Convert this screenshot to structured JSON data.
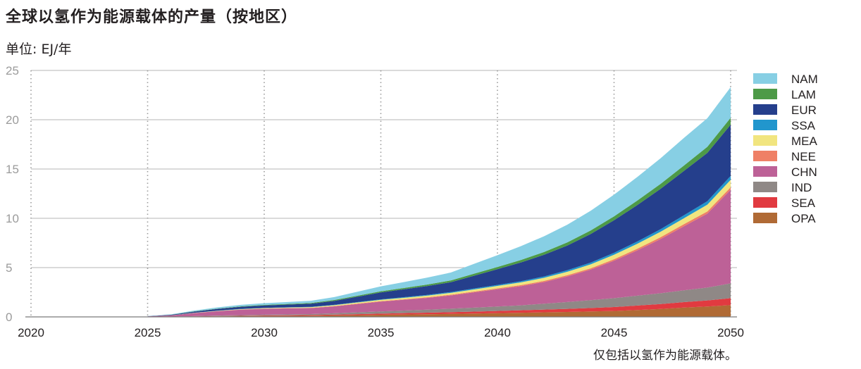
{
  "title": "全球以氢作为能源载体的产量（按地区）",
  "unit_label": "单位: EJ/年",
  "footnote": "仅包括以氢作为能源载体。",
  "chart_data": {
    "type": "area",
    "stacked": true,
    "title": "全球以氢作为能源载体的产量（按地区）",
    "ylabel": "单位: EJ/年",
    "xlabel": "",
    "xlim": [
      2020,
      2050
    ],
    "ylim": [
      0,
      25
    ],
    "x_ticks": [
      2020,
      2025,
      2030,
      2035,
      2040,
      2045,
      2050
    ],
    "y_ticks": [
      0,
      5,
      10,
      15,
      20,
      25
    ],
    "grid": "horizontal solid, vertical dotted",
    "legend_position": "right",
    "x": [
      2025,
      2026,
      2027,
      2028,
      2029,
      2030,
      2031,
      2032,
      2033,
      2034,
      2035,
      2036,
      2037,
      2038,
      2039,
      2040,
      2041,
      2042,
      2043,
      2044,
      2045,
      2046,
      2047,
      2048,
      2049,
      2050
    ],
    "series": [
      {
        "name": "OPA",
        "color": "#b06a35",
        "values": [
          0,
          0.01,
          0.03,
          0.05,
          0.07,
          0.09,
          0.1,
          0.12,
          0.15,
          0.18,
          0.21,
          0.24,
          0.27,
          0.3,
          0.34,
          0.38,
          0.42,
          0.46,
          0.5,
          0.55,
          0.6,
          0.7,
          0.8,
          0.95,
          1.05,
          1.2
        ]
      },
      {
        "name": "SEA",
        "color": "#e13a40",
        "values": [
          0,
          0.01,
          0.02,
          0.03,
          0.04,
          0.05,
          0.06,
          0.07,
          0.08,
          0.1,
          0.12,
          0.14,
          0.16,
          0.18,
          0.2,
          0.22,
          0.25,
          0.28,
          0.31,
          0.35,
          0.4,
          0.45,
          0.5,
          0.55,
          0.62,
          0.7
        ]
      },
      {
        "name": "IND",
        "color": "#8f8886",
        "values": [
          0,
          0.01,
          0.03,
          0.05,
          0.07,
          0.08,
          0.09,
          0.1,
          0.14,
          0.18,
          0.22,
          0.26,
          0.3,
          0.35,
          0.4,
          0.45,
          0.5,
          0.6,
          0.7,
          0.8,
          0.9,
          1.0,
          1.1,
          1.2,
          1.3,
          1.5
        ]
      },
      {
        "name": "CHN",
        "color": "#bd6197",
        "values": [
          0.05,
          0.12,
          0.3,
          0.45,
          0.55,
          0.6,
          0.62,
          0.6,
          0.7,
          0.85,
          1.0,
          1.1,
          1.2,
          1.35,
          1.55,
          1.75,
          1.95,
          2.2,
          2.6,
          3.1,
          3.8,
          4.6,
          5.5,
          6.5,
          7.5,
          9.5
        ]
      },
      {
        "name": "NEE",
        "color": "#ef8066",
        "values": [
          0,
          0,
          0.01,
          0.01,
          0.02,
          0.02,
          0.02,
          0.03,
          0.03,
          0.04,
          0.05,
          0.05,
          0.06,
          0.07,
          0.08,
          0.09,
          0.1,
          0.11,
          0.12,
          0.13,
          0.15,
          0.17,
          0.19,
          0.21,
          0.23,
          0.25
        ]
      },
      {
        "name": "MEA",
        "color": "#f1e57f",
        "values": [
          0,
          0.01,
          0.02,
          0.03,
          0.04,
          0.05,
          0.06,
          0.07,
          0.09,
          0.11,
          0.13,
          0.15,
          0.17,
          0.19,
          0.22,
          0.25,
          0.28,
          0.31,
          0.35,
          0.4,
          0.45,
          0.5,
          0.55,
          0.6,
          0.68,
          0.75
        ]
      },
      {
        "name": "SSA",
        "color": "#2196cd",
        "values": [
          0,
          0,
          0.01,
          0.01,
          0.02,
          0.02,
          0.02,
          0.03,
          0.03,
          0.04,
          0.05,
          0.06,
          0.07,
          0.08,
          0.09,
          0.1,
          0.12,
          0.14,
          0.16,
          0.18,
          0.2,
          0.23,
          0.26,
          0.3,
          0.35,
          0.4
        ]
      },
      {
        "name": "EUR",
        "color": "#253f8c",
        "values": [
          0.02,
          0.05,
          0.12,
          0.18,
          0.22,
          0.25,
          0.28,
          0.32,
          0.4,
          0.55,
          0.7,
          0.8,
          0.9,
          1.0,
          1.3,
          1.6,
          1.9,
          2.2,
          2.5,
          2.9,
          3.3,
          3.7,
          4.1,
          4.5,
          4.9,
          5.2
        ]
      },
      {
        "name": "LAM",
        "color": "#4d9a47",
        "values": [
          0,
          0.01,
          0.02,
          0.03,
          0.04,
          0.05,
          0.06,
          0.07,
          0.09,
          0.1,
          0.12,
          0.14,
          0.16,
          0.18,
          0.2,
          0.22,
          0.25,
          0.28,
          0.32,
          0.36,
          0.4,
          0.45,
          0.5,
          0.55,
          0.62,
          0.7
        ]
      },
      {
        "name": "NAM",
        "color": "#87cfe4",
        "values": [
          0.01,
          0.04,
          0.08,
          0.12,
          0.15,
          0.18,
          0.2,
          0.22,
          0.3,
          0.4,
          0.5,
          0.6,
          0.7,
          0.8,
          1.0,
          1.2,
          1.4,
          1.6,
          1.8,
          2.0,
          2.2,
          2.4,
          2.6,
          2.8,
          2.9,
          3.1
        ]
      }
    ]
  }
}
